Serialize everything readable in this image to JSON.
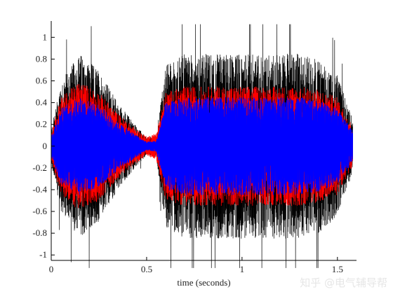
{
  "chart_data": {
    "type": "line",
    "title": "",
    "xlabel": "time (seconds)",
    "ylabel": "",
    "xlim": [
      0,
      1.6
    ],
    "ylim": [
      -1.05,
      1.15
    ],
    "xticks": [
      0,
      0.5,
      1,
      1.5
    ],
    "xtick_labels": [
      "0",
      "0.5",
      "1",
      "1.5"
    ],
    "yticks": [
      1,
      0.8,
      0.6,
      0.4,
      0.2,
      0,
      -0.2,
      -0.4,
      -0.6,
      -0.8,
      -1
    ],
    "ytick_labels": [
      "1",
      "0.8",
      "0.6",
      "0.4",
      "0.2",
      "0",
      "-0.2",
      "-0.4",
      "-0.6",
      "-0.8",
      "-1"
    ],
    "grid": false,
    "series": [
      {
        "color": "#000000",
        "envelope_x": [
          0,
          0.05,
          0.15,
          0.25,
          0.35,
          0.45,
          0.5,
          0.55,
          0.6,
          0.7,
          0.8,
          0.9,
          1.0,
          1.1,
          1.2,
          1.3,
          1.4,
          1.5,
          1.6
        ],
        "envelope_y": [
          0.15,
          0.6,
          0.85,
          0.7,
          0.4,
          0.18,
          0.08,
          0.1,
          0.75,
          0.85,
          0.85,
          0.85,
          0.85,
          0.85,
          0.85,
          0.85,
          0.8,
          0.65,
          0.15
        ]
      },
      {
        "color": "#ff0000",
        "envelope_x": [
          0,
          0.05,
          0.15,
          0.25,
          0.35,
          0.45,
          0.5,
          0.55,
          0.6,
          0.7,
          0.8,
          0.9,
          1.0,
          1.1,
          1.2,
          1.3,
          1.4,
          1.5,
          1.6
        ],
        "envelope_y": [
          0.12,
          0.45,
          0.6,
          0.5,
          0.3,
          0.15,
          0.09,
          0.12,
          0.5,
          0.55,
          0.55,
          0.55,
          0.55,
          0.55,
          0.55,
          0.55,
          0.52,
          0.45,
          0.12
        ]
      },
      {
        "color": "#0000ff",
        "envelope_x": [
          0,
          0.05,
          0.15,
          0.25,
          0.35,
          0.45,
          0.5,
          0.55,
          0.6,
          0.7,
          0.8,
          0.9,
          1.0,
          1.1,
          1.2,
          1.3,
          1.4,
          1.5,
          1.6
        ],
        "envelope_y": [
          0.1,
          0.35,
          0.45,
          0.38,
          0.22,
          0.1,
          0.04,
          0.05,
          0.4,
          0.45,
          0.45,
          0.45,
          0.45,
          0.45,
          0.45,
          0.45,
          0.42,
          0.35,
          0.1
        ]
      }
    ]
  },
  "watermark": {
    "text": "知乎 @电气辅导帮"
  }
}
